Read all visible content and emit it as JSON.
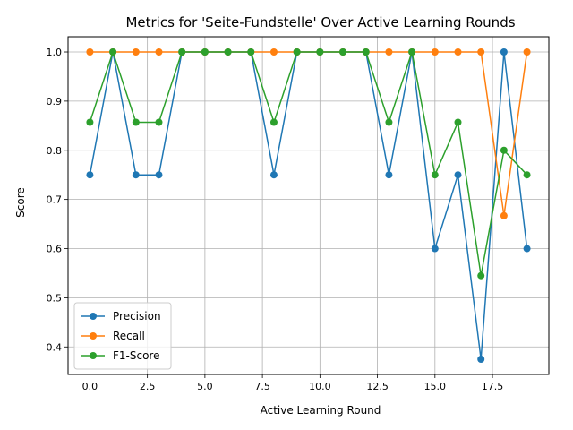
{
  "chart_data": {
    "type": "line",
    "title": "Metrics for 'Seite-Fundstelle' Over Active Learning Rounds",
    "xlabel": "Active Learning Round",
    "ylabel": "Score",
    "xlim": [
      -0.95,
      19.95
    ],
    "ylim": [
      0.344,
      1.031
    ],
    "xticks": [
      0.0,
      2.5,
      5.0,
      7.5,
      10.0,
      12.5,
      15.0,
      17.5
    ],
    "xtick_labels": [
      "0.0",
      "2.5",
      "5.0",
      "7.5",
      "10.0",
      "12.5",
      "15.0",
      "17.5"
    ],
    "yticks": [
      0.4,
      0.5,
      0.6,
      0.7,
      0.8,
      0.9,
      1.0
    ],
    "ytick_labels": [
      "0.4",
      "0.5",
      "0.6",
      "0.7",
      "0.8",
      "0.9",
      "1.0"
    ],
    "grid": true,
    "legend_position": "lower-left",
    "x": [
      0,
      1,
      2,
      3,
      4,
      5,
      6,
      7,
      8,
      9,
      10,
      11,
      12,
      13,
      14,
      15,
      16,
      17,
      18,
      19
    ],
    "series": [
      {
        "name": "Precision",
        "color": "#1f77b4",
        "values": [
          0.75,
          1.0,
          0.75,
          0.75,
          1.0,
          1.0,
          1.0,
          1.0,
          0.75,
          1.0,
          1.0,
          1.0,
          1.0,
          0.75,
          1.0,
          0.6,
          0.75,
          0.375,
          1.0,
          0.6
        ]
      },
      {
        "name": "Recall",
        "color": "#ff7f0e",
        "values": [
          1.0,
          1.0,
          1.0,
          1.0,
          1.0,
          1.0,
          1.0,
          1.0,
          1.0,
          1.0,
          1.0,
          1.0,
          1.0,
          1.0,
          1.0,
          1.0,
          1.0,
          1.0,
          0.667,
          1.0
        ]
      },
      {
        "name": "F1-Score",
        "color": "#2ca02c",
        "values": [
          0.857,
          1.0,
          0.857,
          0.857,
          1.0,
          1.0,
          1.0,
          1.0,
          0.857,
          1.0,
          1.0,
          1.0,
          1.0,
          0.857,
          1.0,
          0.75,
          0.857,
          0.545,
          0.8,
          0.75
        ]
      }
    ]
  }
}
